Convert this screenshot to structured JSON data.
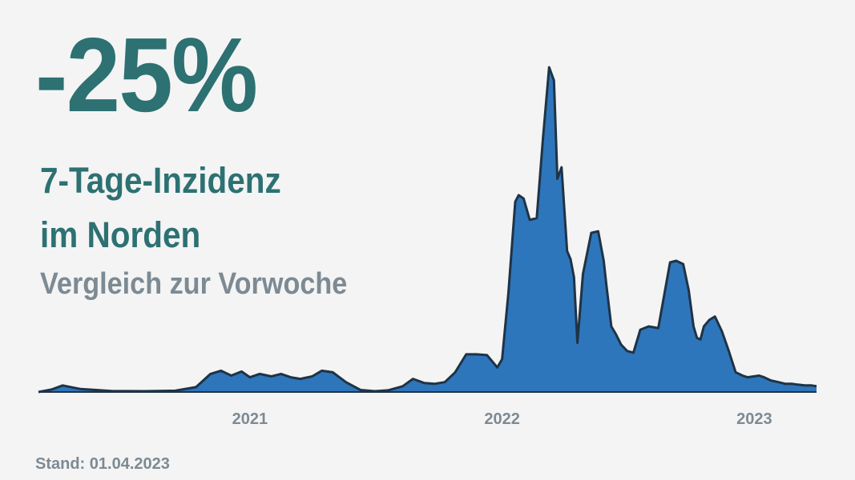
{
  "header": {
    "change": "-25%",
    "title_line1": "7-Tage-Inzidenz",
    "title_line2": "im Norden",
    "subtitle": "Vergleich zur Vorwoche"
  },
  "footer": {
    "stand": "Stand: 01.04.2023"
  },
  "colors": {
    "fill": "#2e76bb",
    "stroke": "#1f3346",
    "headline": "#2d7172",
    "muted": "#7d8a93"
  },
  "chart_data": {
    "type": "area",
    "title": "",
    "xlabel": "",
    "ylabel": "",
    "x_ticks": [
      {
        "label": "2021",
        "x": "2021-01-01"
      },
      {
        "label": "2022",
        "x": "2022-01-01"
      },
      {
        "label": "2023",
        "x": "2023-01-01"
      }
    ],
    "xlim": [
      "2020-03-01",
      "2023-04-01"
    ],
    "ylim": [
      0,
      2000
    ],
    "grid": false,
    "legend": "none",
    "series": [
      {
        "x": [
          "2020-03-01",
          "2020-03-20",
          "2020-04-05",
          "2020-05-01",
          "2020-06-15",
          "2020-08-01",
          "2020-09-15",
          "2020-10-15",
          "2020-11-05",
          "2020-11-20",
          "2020-12-05",
          "2020-12-20",
          "2021-01-01",
          "2021-01-15",
          "2021-02-01",
          "2021-02-15",
          "2021-03-01",
          "2021-03-15",
          "2021-04-01",
          "2021-04-15",
          "2021-05-01",
          "2021-05-20",
          "2021-06-10",
          "2021-07-01",
          "2021-07-20",
          "2021-08-10",
          "2021-08-25",
          "2021-09-10",
          "2021-09-25",
          "2021-10-10",
          "2021-10-25",
          "2021-11-10",
          "2021-11-25",
          "2021-12-10",
          "2021-12-25",
          "2022-01-01",
          "2022-01-10",
          "2022-01-20",
          "2022-01-25",
          "2022-02-01",
          "2022-02-10",
          "2022-02-20",
          "2022-03-01",
          "2022-03-10",
          "2022-03-17",
          "2022-03-22",
          "2022-03-28",
          "2022-04-05",
          "2022-04-10",
          "2022-04-15",
          "2022-04-20",
          "2022-04-28",
          "2022-05-10",
          "2022-05-20",
          "2022-05-28",
          "2022-06-01",
          "2022-06-08",
          "2022-06-15",
          "2022-06-22",
          "2022-07-01",
          "2022-07-10",
          "2022-07-20",
          "2022-08-01",
          "2022-08-15",
          "2022-09-01",
          "2022-09-10",
          "2022-09-20",
          "2022-09-28",
          "2022-10-05",
          "2022-10-10",
          "2022-10-15",
          "2022-10-20",
          "2022-10-28",
          "2022-11-05",
          "2022-11-15",
          "2022-11-25",
          "2022-12-05",
          "2022-12-15",
          "2022-12-22",
          "2022-12-31",
          "2023-01-08",
          "2023-01-15",
          "2023-01-25",
          "2023-02-05",
          "2023-02-15",
          "2023-02-25",
          "2023-03-05",
          "2023-03-15",
          "2023-03-25",
          "2023-04-01"
        ],
        "y": [
          0,
          15,
          40,
          18,
          6,
          5,
          8,
          30,
          110,
          130,
          100,
          125,
          90,
          110,
          95,
          110,
          90,
          80,
          95,
          130,
          120,
          60,
          12,
          5,
          10,
          35,
          80,
          55,
          50,
          60,
          120,
          230,
          230,
          225,
          150,
          200,
          600,
          1160,
          1200,
          1180,
          1050,
          1060,
          1540,
          1980,
          1900,
          1300,
          1370,
          860,
          810,
          700,
          300,
          720,
          970,
          980,
          800,
          650,
          400,
          350,
          290,
          250,
          240,
          380,
          400,
          390,
          790,
          800,
          780,
          620,
          400,
          330,
          320,
          400,
          440,
          460,
          370,
          250,
          120,
          100,
          90,
          95,
          100,
          90,
          70,
          60,
          50,
          50,
          45,
          40,
          40,
          35
        ]
      }
    ]
  }
}
